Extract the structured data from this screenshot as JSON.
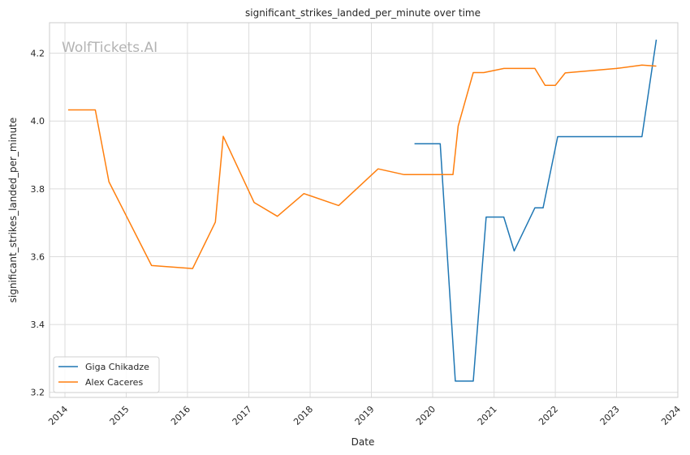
{
  "chart_data": {
    "type": "line",
    "title": "significant_strikes_landed_per_minute over time",
    "xlabel": "Date",
    "ylabel": "significant_strikes_landed_per_minute",
    "watermark": "WolfTickets.AI",
    "xlim": [
      "2013-10-01",
      "2024-01-01"
    ],
    "ylim": [
      3.185,
      4.29
    ],
    "x_ticks": [
      "2014",
      "2015",
      "2016",
      "2017",
      "2018",
      "2019",
      "2020",
      "2021",
      "2022",
      "2023",
      "2024"
    ],
    "y_ticks": [
      "3.2",
      "3.4",
      "3.6",
      "3.8",
      "4.0",
      "4.2"
    ],
    "grid": true,
    "legend_position": "lower-left",
    "series": [
      {
        "name": "Giga Chikadze",
        "color": "#1f77b4",
        "points": [
          [
            "2019-09-15",
            3.933
          ],
          [
            "2020-01-15",
            3.933
          ],
          [
            "2020-02-15",
            3.933
          ],
          [
            "2020-05-15",
            3.233
          ],
          [
            "2020-08-30",
            3.233
          ],
          [
            "2020-11-15",
            3.717
          ],
          [
            "2021-02-28",
            3.717
          ],
          [
            "2021-05-01",
            3.617
          ],
          [
            "2021-09-01",
            3.744
          ],
          [
            "2021-10-20",
            3.744
          ],
          [
            "2022-01-15",
            3.954
          ],
          [
            "2023-02-01",
            3.954
          ],
          [
            "2023-06-01",
            3.954
          ],
          [
            "2023-08-26",
            4.24
          ]
        ]
      },
      {
        "name": "Alex Caceres",
        "color": "#ff7f0e",
        "points": [
          [
            "2014-01-20",
            4.033
          ],
          [
            "2014-07-01",
            4.033
          ],
          [
            "2014-09-20",
            3.821
          ],
          [
            "2015-06-01",
            3.574
          ],
          [
            "2016-02-01",
            3.565
          ],
          [
            "2016-06-15",
            3.702
          ],
          [
            "2016-08-01",
            3.955
          ],
          [
            "2017-02-01",
            3.76
          ],
          [
            "2017-06-20",
            3.719
          ],
          [
            "2017-11-25",
            3.786
          ],
          [
            "2018-06-20",
            3.751
          ],
          [
            "2019-02-10",
            3.859
          ],
          [
            "2019-07-15",
            3.842
          ],
          [
            "2020-03-01",
            3.842
          ],
          [
            "2020-05-01",
            3.842
          ],
          [
            "2020-06-01",
            3.985
          ],
          [
            "2020-08-30",
            4.143
          ],
          [
            "2020-11-01",
            4.143
          ],
          [
            "2021-03-01",
            4.155
          ],
          [
            "2021-09-01",
            4.155
          ],
          [
            "2021-11-01",
            4.105
          ],
          [
            "2022-01-01",
            4.105
          ],
          [
            "2022-03-01",
            4.142
          ],
          [
            "2023-01-01",
            4.155
          ],
          [
            "2023-06-01",
            4.165
          ],
          [
            "2023-08-26",
            4.162
          ]
        ]
      }
    ]
  }
}
